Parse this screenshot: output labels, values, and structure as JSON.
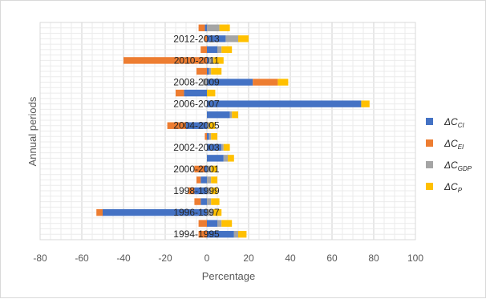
{
  "chart_data": {
    "type": "bar",
    "orientation": "horizontal",
    "stacked": true,
    "xlabel": "Percentage",
    "ylabel": "Annual periods",
    "xlim": [
      -80,
      100
    ],
    "xticks": [
      -80,
      -60,
      -40,
      -20,
      0,
      20,
      40,
      60,
      80,
      100
    ],
    "grid": true,
    "legend_position": "right",
    "categories": [
      "1994-1995",
      "",
      "1996-1997",
      "",
      "1998-1999",
      "",
      "2000-2001",
      "",
      "2002-2003",
      "",
      "2004-2005",
      "",
      "2006-2007",
      "",
      "2008-2009",
      "",
      "2010-2011",
      "",
      "2012-2013",
      ""
    ],
    "series": [
      {
        "name": "ΔC_CI",
        "legend_main": "ΔC",
        "legend_sub": "CI",
        "color": "#4472C4",
        "values": [
          13,
          5,
          -50,
          -3,
          -6,
          -3,
          -1,
          8,
          7,
          1,
          -10,
          11,
          74,
          -11,
          22,
          1,
          1,
          5,
          9,
          -1
        ]
      },
      {
        "name": "ΔC_EI",
        "legend_main": "ΔC",
        "legend_sub": "EI",
        "color": "#ED7D31",
        "values": [
          -4,
          -4,
          -3,
          -3,
          -3,
          -2,
          -5,
          0,
          0,
          -1,
          -9,
          0,
          0,
          -4,
          12,
          -5,
          -40,
          -3,
          -1,
          -3
        ]
      },
      {
        "name": "ΔC_GDP",
        "legend_main": "ΔC",
        "legend_sub": "GDP",
        "color": "#A5A5A5",
        "values": [
          2,
          2,
          3,
          2,
          2,
          2,
          2,
          2,
          1,
          1,
          1,
          1,
          0,
          0,
          -2,
          1,
          2,
          2,
          6,
          6
        ]
      },
      {
        "name": "ΔC_P",
        "legend_main": "ΔC",
        "legend_sub": "P",
        "color": "#FFC000",
        "values": [
          4,
          5,
          4,
          4,
          3,
          3,
          3,
          3,
          3,
          3,
          3,
          3,
          4,
          4,
          5,
          5,
          5,
          5,
          5,
          5
        ]
      }
    ]
  }
}
